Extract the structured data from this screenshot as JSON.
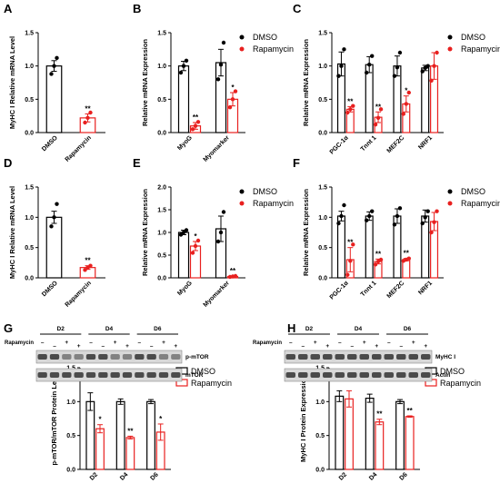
{
  "colors": {
    "dmso": "#000000",
    "rapamycin": "#e8201f",
    "blot_bg": "#d8d8d8",
    "band": "#3c3c3c"
  },
  "legend": {
    "dmso": "DMSO",
    "rapamycin": "Rapamycin"
  },
  "chart_data": [
    {
      "panel": "A",
      "type": "bar",
      "ylabel": "MyHC I Relative mRNA Level",
      "ylim": [
        0,
        1.5
      ],
      "yticks": [
        "0.0",
        "0.5",
        "1.0",
        "1.5"
      ],
      "categories": [
        "DMSO",
        "Rapamycin"
      ],
      "values": [
        1.0,
        0.22
      ],
      "errors": [
        0.08,
        0.06
      ],
      "sig": [
        "",
        "**"
      ],
      "points": [
        [
          0.88,
          1.0,
          1.12
        ],
        [
          0.15,
          0.22,
          0.3
        ]
      ]
    },
    {
      "panel": "B",
      "type": "bar",
      "ylabel": "Relative mRNA Expression",
      "ylim": [
        0,
        1.5
      ],
      "yticks": [
        "0.0",
        "0.5",
        "1.0",
        "1.5"
      ],
      "categories": [
        "MyoG",
        "Myomarker"
      ],
      "legend": true,
      "series": [
        {
          "name": "DMSO",
          "values": [
            1.0,
            1.05
          ],
          "errors": [
            0.07,
            0.2
          ],
          "sig": [
            "",
            ""
          ],
          "points": [
            [
              0.9,
              1.0,
              1.08
            ],
            [
              0.8,
              1.02,
              1.35
            ]
          ]
        },
        {
          "name": "Rapamycin",
          "values": [
            0.1,
            0.5
          ],
          "errors": [
            0.05,
            0.1
          ],
          "sig": [
            "**",
            "*"
          ],
          "points": [
            [
              0.05,
              0.1,
              0.16
            ],
            [
              0.38,
              0.5,
              0.62
            ]
          ]
        }
      ]
    },
    {
      "panel": "C",
      "type": "bar",
      "ylabel": "Relative mRNA Expression",
      "ylim": [
        0,
        1.5
      ],
      "yticks": [
        "0.0",
        "0.5",
        "1.0",
        "1.5"
      ],
      "categories": [
        "PGC-1α",
        "Tnnt 1",
        "MEF2C",
        "NRF1"
      ],
      "legend": true,
      "series": [
        {
          "name": "DMSO",
          "values": [
            1.03,
            1.02,
            1.0,
            0.97
          ],
          "errors": [
            0.18,
            0.12,
            0.15,
            0.04
          ],
          "sig": [
            "",
            "",
            "",
            ""
          ],
          "points": [
            [
              0.85,
              1.0,
              1.25
            ],
            [
              0.9,
              1.02,
              1.15
            ],
            [
              0.85,
              0.98,
              1.2
            ],
            [
              0.92,
              0.97,
              1.0
            ]
          ]
        },
        {
          "name": "Rapamycin",
          "values": [
            0.35,
            0.23,
            0.43,
            1.0
          ],
          "errors": [
            0.04,
            0.08,
            0.12,
            0.2
          ],
          "sig": [
            "**",
            "**",
            "*",
            ""
          ],
          "points": [
            [
              0.3,
              0.35,
              0.4
            ],
            [
              0.12,
              0.22,
              0.35
            ],
            [
              0.28,
              0.43,
              0.6
            ],
            [
              0.78,
              1.0,
              1.2
            ]
          ]
        }
      ]
    },
    {
      "panel": "D",
      "type": "bar",
      "ylabel": "MyHC I Relative mRNA Level",
      "ylim": [
        0,
        1.5
      ],
      "yticks": [
        "0.0",
        "0.5",
        "1.0",
        "1.5"
      ],
      "categories": [
        "DMSO",
        "Rapamycin"
      ],
      "values": [
        1.0,
        0.17
      ],
      "errors": [
        0.1,
        0.03
      ],
      "sig": [
        "",
        "**"
      ],
      "points": [
        [
          0.85,
          1.0,
          1.22
        ],
        [
          0.13,
          0.17,
          0.2
        ]
      ]
    },
    {
      "panel": "E",
      "type": "bar",
      "ylabel": "Relative mRNA Expression",
      "ylim": [
        0,
        2.0
      ],
      "yticks": [
        "0.0",
        "0.5",
        "1.0",
        "1.5",
        "2.0"
      ],
      "categories": [
        "MyoG",
        "Myomarker"
      ],
      "legend": true,
      "series": [
        {
          "name": "DMSO",
          "values": [
            1.0,
            1.08
          ],
          "errors": [
            0.05,
            0.28
          ],
          "sig": [
            "",
            ""
          ],
          "points": [
            [
              0.95,
              1.0,
              1.05
            ],
            [
              0.8,
              1.0,
              1.45
            ]
          ]
        },
        {
          "name": "Rapamycin",
          "values": [
            0.7,
            0.03
          ],
          "errors": [
            0.1,
            0.01
          ],
          "sig": [
            "*",
            "**"
          ],
          "points": [
            [
              0.55,
              0.7,
              0.82
            ],
            [
              0.02,
              0.03,
              0.04
            ]
          ]
        }
      ]
    },
    {
      "panel": "F",
      "type": "bar",
      "ylabel": "Relative mRNA Expression",
      "ylim": [
        0,
        1.5
      ],
      "yticks": [
        "0.0",
        "0.5",
        "1.0",
        "1.5"
      ],
      "categories": [
        "PGC-1α",
        "Tnnt 1",
        "MEF2C",
        "NRF1"
      ],
      "legend": true,
      "series": [
        {
          "name": "DMSO",
          "values": [
            1.02,
            1.02,
            1.02,
            1.02
          ],
          "errors": [
            0.08,
            0.07,
            0.12,
            0.1
          ],
          "sig": [
            "",
            "",
            "",
            ""
          ],
          "points": [
            [
              0.9,
              1.02,
              1.2
            ],
            [
              0.95,
              1.02,
              1.1
            ],
            [
              0.88,
              1.02,
              1.15
            ],
            [
              0.9,
              1.0,
              1.1
            ]
          ]
        },
        {
          "name": "Rapamycin",
          "values": [
            0.3,
            0.27,
            0.3,
            0.93
          ],
          "errors": [
            0.2,
            0.04,
            0.02,
            0.15
          ],
          "sig": [
            "**",
            "**",
            "**",
            ""
          ],
          "points": [
            [
              0.05,
              0.28,
              0.55
            ],
            [
              0.22,
              0.27,
              0.3
            ],
            [
              0.28,
              0.3,
              0.32
            ],
            [
              0.75,
              0.92,
              1.1
            ]
          ]
        }
      ]
    },
    {
      "panel": "G",
      "type": "bar",
      "ylabel": "p-mTOR/mTOR Protein Level",
      "ylim": [
        0,
        1.5
      ],
      "yticks": [
        "0.0",
        "0.5",
        "1.0",
        "1.5"
      ],
      "categories": [
        "D2",
        "D4",
        "D6"
      ],
      "legend": true,
      "series": [
        {
          "name": "DMSO",
          "values": [
            1.0,
            1.0,
            1.0
          ],
          "errors": [
            0.13,
            0.04,
            0.03
          ],
          "sig": [
            "",
            "",
            ""
          ]
        },
        {
          "name": "Rapamycin",
          "values": [
            0.6,
            0.47,
            0.55
          ],
          "errors": [
            0.06,
            0.02,
            0.12
          ],
          "sig": [
            "*",
            "**",
            "*"
          ]
        }
      ]
    },
    {
      "panel": "H",
      "type": "bar",
      "ylabel": "MyHC I Protein Expression",
      "ylim": [
        0,
        1.5
      ],
      "yticks": [
        "0.0",
        "0.5",
        "1.0",
        "1.5"
      ],
      "categories": [
        "D2",
        "D4",
        "D6"
      ],
      "legend": true,
      "series": [
        {
          "name": "DMSO",
          "values": [
            1.08,
            1.05,
            1.0
          ],
          "errors": [
            0.08,
            0.06,
            0.03
          ],
          "sig": [
            "",
            "",
            ""
          ]
        },
        {
          "name": "Rapamycin",
          "values": [
            1.04,
            0.7,
            0.78
          ],
          "errors": [
            0.12,
            0.04,
            0.01
          ],
          "sig": [
            "",
            "**",
            "**"
          ]
        }
      ]
    }
  ],
  "blots": {
    "G": {
      "days": [
        "D2",
        "D4",
        "D6"
      ],
      "treatment_label": "Rapamycin",
      "treatment": [
        "–",
        "–",
        "+",
        "+",
        "–",
        "–",
        "+",
        "+",
        "–",
        "–",
        "+",
        "+"
      ],
      "rows": [
        "p-mTOR",
        "mTOR"
      ]
    },
    "H": {
      "days": [
        "D2",
        "D4",
        "D6"
      ],
      "treatment_label": "Rapamycin",
      "treatment": [
        "–",
        "–",
        "+",
        "+",
        "–",
        "–",
        "+",
        "+",
        "–",
        "–",
        "+",
        "+"
      ],
      "rows": [
        "MyHC I",
        "Actin"
      ]
    }
  }
}
